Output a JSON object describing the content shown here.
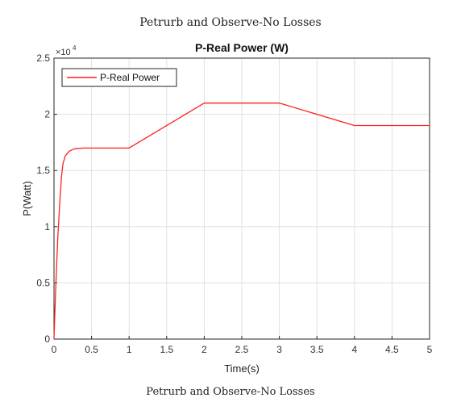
{
  "figure": {
    "suptitle": "Petrurb and Observe-No Losses",
    "footer_title": "Petrurb and Observe-No Losses"
  },
  "chart_data": {
    "type": "line",
    "title": "P-Real Power (W)",
    "xlabel": "Time(s)",
    "ylabel": "P(Watt)",
    "xlim": [
      0,
      5
    ],
    "ylim": [
      0,
      25000
    ],
    "x_ticks": [
      "0",
      "0.5",
      "1",
      "1.5",
      "2",
      "2.5",
      "3",
      "3.5",
      "4",
      "4.5",
      "5"
    ],
    "y_ticks": [
      "0",
      "0.5",
      "1",
      "1.5",
      "2",
      "2.5"
    ],
    "y_multiplier_base": "×10",
    "y_multiplier_exp": "4",
    "grid": true,
    "legend_position": "top-left",
    "series": [
      {
        "name": "P-Real Power",
        "color": "#ff2020",
        "x": [
          0,
          0.02,
          0.05,
          0.08,
          0.1,
          0.12,
          0.15,
          0.2,
          0.25,
          0.3,
          0.4,
          0.6,
          1.0,
          2.0,
          3.0,
          4.0,
          5.0
        ],
        "y": [
          0,
          4000,
          9000,
          12500,
          14500,
          15600,
          16300,
          16700,
          16880,
          16950,
          17000,
          17000,
          17000,
          21000,
          21000,
          19000,
          19000
        ]
      }
    ]
  }
}
